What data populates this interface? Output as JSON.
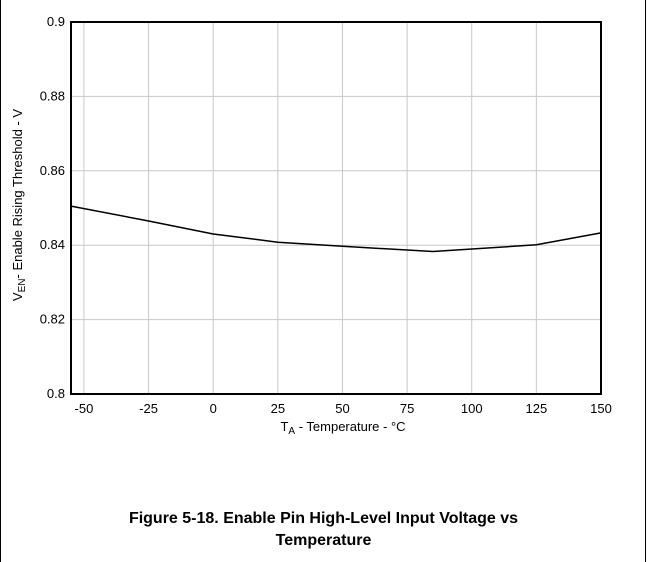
{
  "figure": {
    "caption_line1": "Figure 5-18. Enable Pin High-Level Input Voltage vs",
    "caption_line2": "Temperature"
  },
  "chart_data": {
    "type": "line",
    "title": "",
    "xlabel_main": "T",
    "xlabel_sub": "A",
    "xlabel_rest": " - Temperature - °C",
    "ylabel_main": "V",
    "ylabel_sub": "EN",
    "ylabel_rest": "- Enable Rising Threshold - V",
    "xlim": [
      -55,
      150
    ],
    "ylim": [
      0.8,
      0.9
    ],
    "xticks": [
      -50,
      -25,
      0,
      25,
      50,
      75,
      100,
      125,
      150
    ],
    "xtick_labels": [
      "-50",
      "-25",
      "0",
      "25",
      "50",
      "75",
      "100",
      "125",
      "150"
    ],
    "yticks": [
      0.8,
      0.82,
      0.84,
      0.86,
      0.88,
      0.9
    ],
    "ytick_labels": [
      "0.8",
      "0.82",
      "0.84",
      "0.86",
      "0.88",
      "0.9"
    ],
    "grid": true,
    "legend": "none",
    "line_color": "#000000",
    "grid_color": "#c8c8c8",
    "series": [
      {
        "x": [
          -55,
          -25,
          0,
          25,
          50,
          85,
          125,
          150
        ],
        "y": [
          0.8505,
          0.8465,
          0.843,
          0.8408,
          0.8397,
          0.8383,
          0.8401,
          0.8433
        ]
      }
    ]
  }
}
